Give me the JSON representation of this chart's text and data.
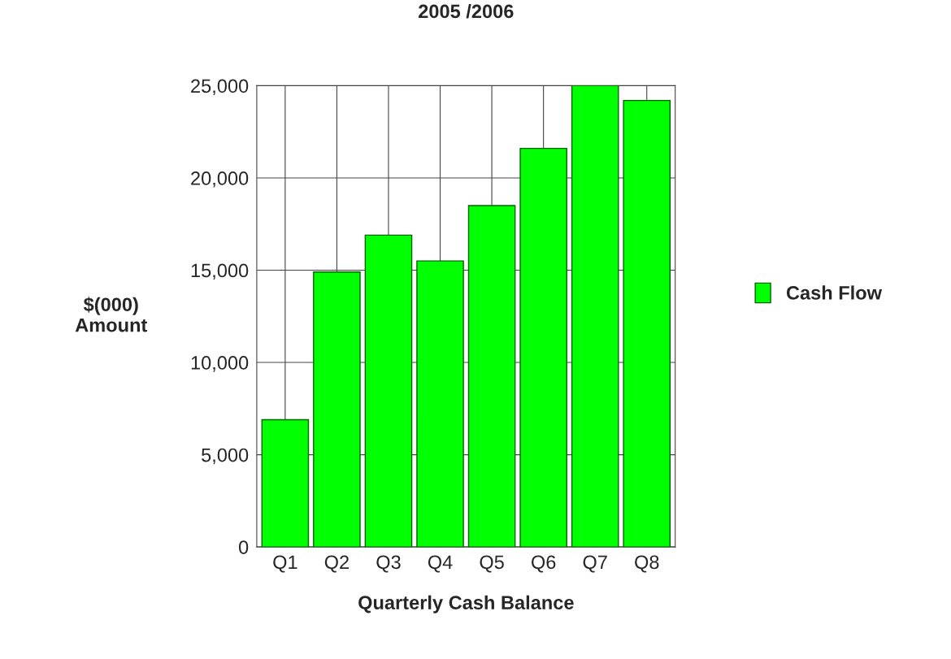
{
  "chart_data": {
    "type": "bar",
    "title": "2005 /2006",
    "xlabel": "Quarterly Cash Balance",
    "ylabel": "$(000)\nAmount",
    "categories": [
      "Q1",
      "Q2",
      "Q3",
      "Q4",
      "Q5",
      "Q6",
      "Q7",
      "Q8"
    ],
    "series": [
      {
        "name": "Cash Flow",
        "color": "#00ff00",
        "values": [
          6900,
          14900,
          16900,
          15500,
          18500,
          21600,
          25000,
          24200
        ]
      }
    ],
    "ylim": [
      0,
      25000
    ],
    "yticks": [
      {
        "value": 0,
        "label": "0"
      },
      {
        "value": 5000,
        "label": "5,000"
      },
      {
        "value": 10000,
        "label": "10,000"
      },
      {
        "value": 15000,
        "label": "15,000"
      },
      {
        "value": 20000,
        "label": "20,000"
      },
      {
        "value": 25000,
        "label": "25,000"
      }
    ],
    "grid": true,
    "legend": "right"
  }
}
